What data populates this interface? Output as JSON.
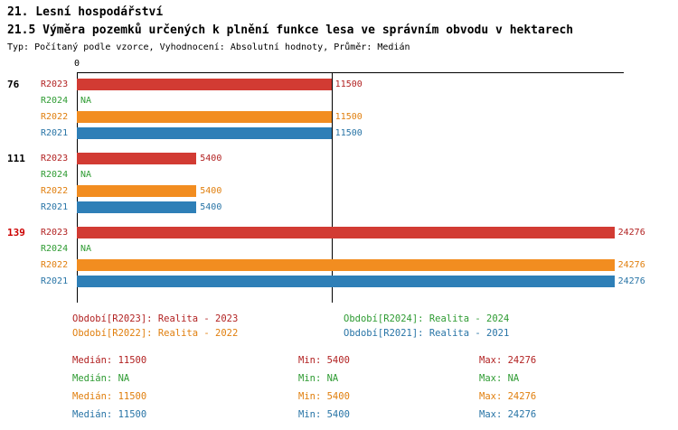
{
  "header": {
    "title": "21. Lesní hospodářství",
    "subtitle": "21.5 Výměra pozemků určených k plnění funkce lesa ve správním obvodu v hektarech",
    "meta": "Typ: Počítaný podle vzorce, Vyhodnocení: Absolutní hodnoty, Průměr: Medián"
  },
  "chart_data": {
    "type": "bar",
    "orientation": "horizontal",
    "title": "21.5 Výměra pozemků určených k plnění funkce lesa ve správním obvodu v hektarech",
    "xlim": [
      0,
      24700
    ],
    "origin_tick_label": "0",
    "median_line_value": 11500,
    "grid": false,
    "legend_position": "bottom",
    "series": [
      {
        "id": "R2023",
        "label": "Období[R2023]: Realita - 2023",
        "bar_color": "#D23B33",
        "text_color": "#B22222"
      },
      {
        "id": "R2024",
        "label": "Období[R2024]: Realita - 2024",
        "bar_color": "#2E9B32",
        "text_color": "#2E9B32"
      },
      {
        "id": "R2022",
        "label": "Období[R2022]: Realita - 2022",
        "bar_color": "#F28D20",
        "text_color": "#E07F0E"
      },
      {
        "id": "R2021",
        "label": "Období[R2021]: Realita - 2021",
        "bar_color": "#2E7FB7",
        "text_color": "#2874A6"
      }
    ],
    "groups": [
      {
        "label": "76",
        "label_color": "#000000",
        "values": {
          "R2023": 11500,
          "R2024": null,
          "R2022": 11500,
          "R2021": 11500
        },
        "display": {
          "R2023": "11500",
          "R2024": "NA",
          "R2022": "11500",
          "R2021": "11500"
        }
      },
      {
        "label": "111",
        "label_color": "#000000",
        "values": {
          "R2023": 5400,
          "R2024": null,
          "R2022": 5400,
          "R2021": 5400
        },
        "display": {
          "R2023": "5400",
          "R2024": "NA",
          "R2022": "5400",
          "R2021": "5400"
        }
      },
      {
        "label": "139",
        "label_color": "#CC0000",
        "values": {
          "R2023": 24276,
          "R2024": null,
          "R2022": 24276,
          "R2021": 24276
        },
        "display": {
          "R2023": "24276",
          "R2024": "NA",
          "R2022": "24276",
          "R2021": "24276"
        }
      }
    ],
    "stats": [
      {
        "series": "R2023",
        "median": "Medián: 11500",
        "min": "Min: 5400",
        "max": "Max: 24276"
      },
      {
        "series": "R2024",
        "median": "Medián: NA",
        "min": "Min: NA",
        "max": "Max: NA"
      },
      {
        "series": "R2022",
        "median": "Medián: 11500",
        "min": "Min: 5400",
        "max": "Max: 24276"
      },
      {
        "series": "R2021",
        "median": "Medián: 11500",
        "min": "Min: 5400",
        "max": "Max: 24276"
      }
    ]
  }
}
